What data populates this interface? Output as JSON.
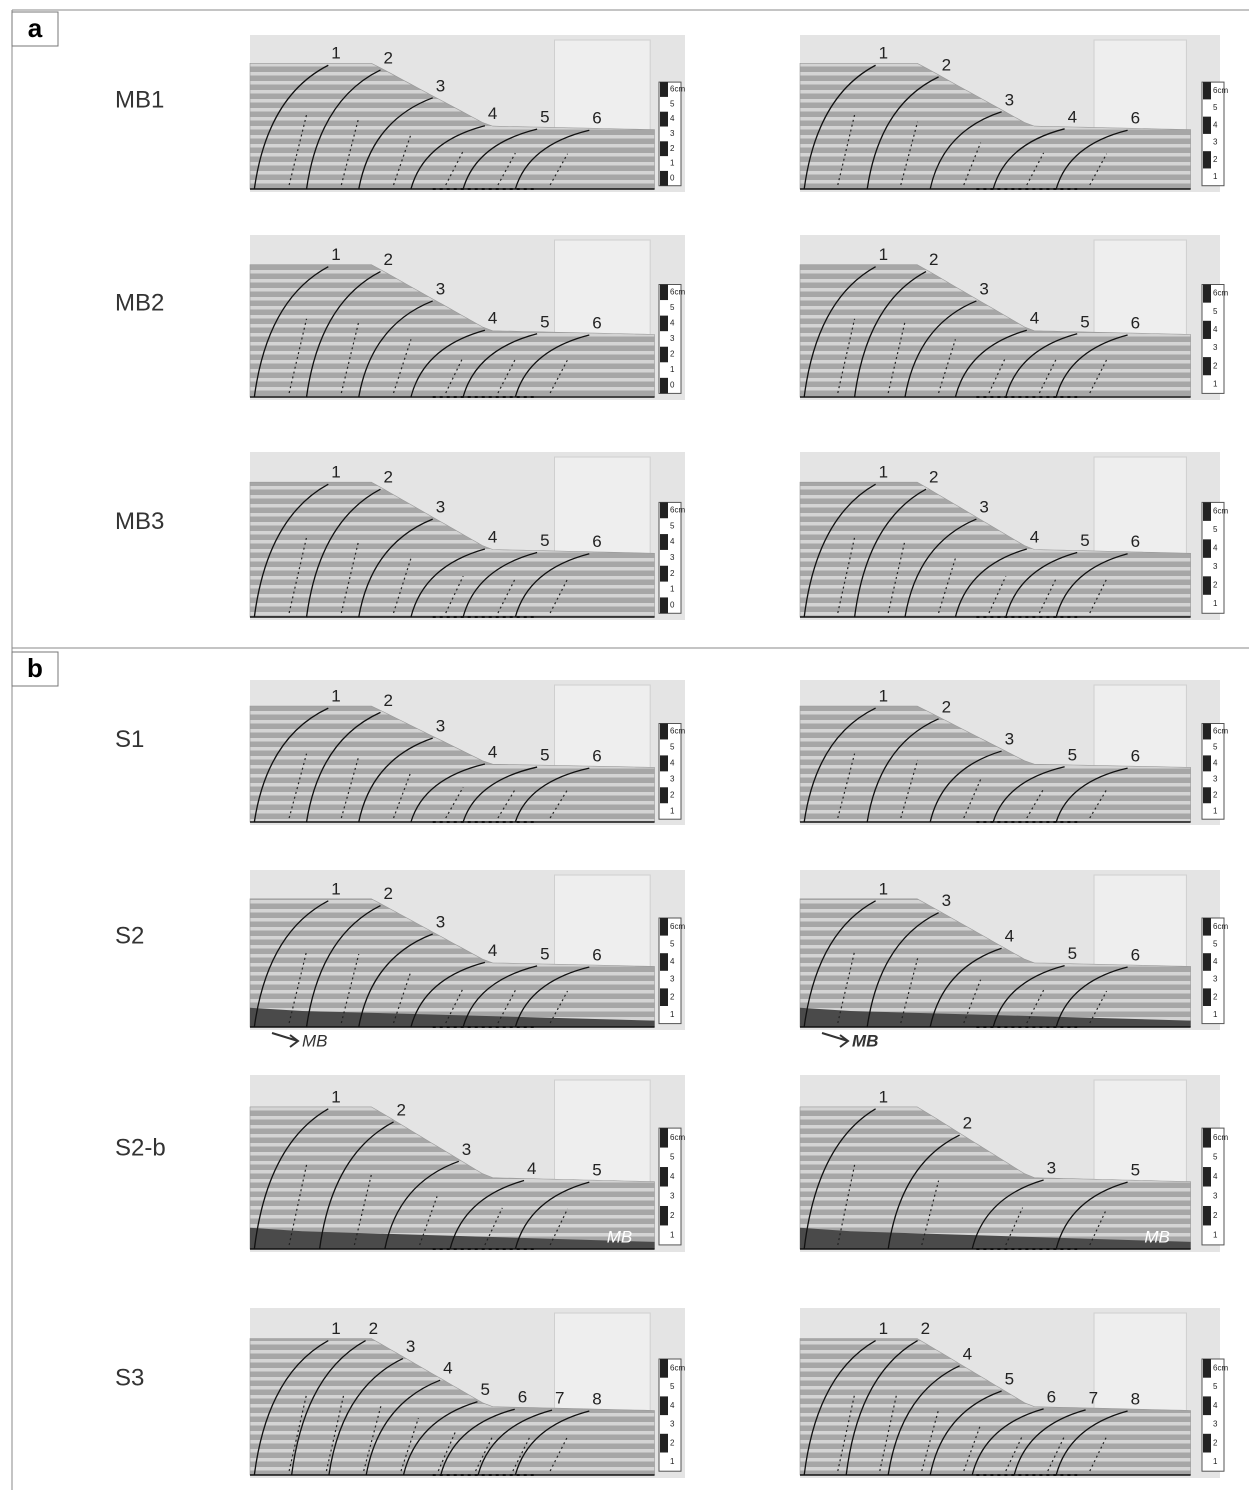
{
  "panels": [
    {
      "label": "a",
      "rows": [
        {
          "label": "MB1",
          "images": [
            {
              "faults": [
                "1",
                "2",
                "3",
                "4",
                "5",
                "6"
              ],
              "scale": [
                "6cm",
                "5",
                "4",
                "3",
                "2",
                "1",
                "0"
              ]
            },
            {
              "faults": [
                "1",
                "2",
                "3",
                "4",
                "6"
              ],
              "scale": [
                "6cm",
                "5",
                "4",
                "3",
                "2",
                "1"
              ]
            }
          ]
        },
        {
          "label": "MB2",
          "images": [
            {
              "faults": [
                "1",
                "2",
                "3",
                "4",
                "5",
                "6"
              ],
              "scale": [
                "6cm",
                "5",
                "4",
                "3",
                "2",
                "1",
                "0"
              ]
            },
            {
              "faults": [
                "1",
                "2",
                "3",
                "4",
                "5",
                "6"
              ],
              "scale": [
                "6cm",
                "5",
                "4",
                "3",
                "2",
                "1"
              ]
            }
          ]
        },
        {
          "label": "MB3",
          "images": [
            {
              "faults": [
                "1",
                "2",
                "3",
                "4",
                "5",
                "6"
              ],
              "scale": [
                "6cm",
                "5",
                "4",
                "3",
                "2",
                "1",
                "0"
              ]
            },
            {
              "faults": [
                "1",
                "2",
                "3",
                "4",
                "5",
                "6"
              ],
              "scale": [
                "6cm",
                "5",
                "4",
                "3",
                "2",
                "1"
              ]
            }
          ]
        }
      ]
    },
    {
      "label": "b",
      "rows": [
        {
          "label": "S1",
          "images": [
            {
              "faults": [
                "1",
                "2",
                "3",
                "4",
                "5",
                "6"
              ],
              "scale": [
                "6cm",
                "5",
                "4",
                "3",
                "2",
                "1"
              ]
            },
            {
              "faults": [
                "1",
                "2",
                "3",
                "5",
                "6"
              ],
              "scale": [
                "6cm",
                "5",
                "4",
                "3",
                "2",
                "1"
              ]
            }
          ]
        },
        {
          "label": "S2",
          "images": [
            {
              "faults": [
                "1",
                "2",
                "3",
                "4",
                "5",
                "6"
              ],
              "scale": [
                "6cm",
                "5",
                "4",
                "3",
                "2",
                "1"
              ],
              "mb_label": "MB"
            },
            {
              "faults": [
                "1",
                "3",
                "4",
                "5",
                "6"
              ],
              "scale": [
                "6cm",
                "5",
                "4",
                "3",
                "2",
                "1"
              ],
              "mb_label": "MB"
            }
          ]
        },
        {
          "label": "S2-b",
          "images": [
            {
              "faults": [
                "1",
                "2",
                "3",
                "4",
                "5"
              ],
              "scale": [
                "6cm",
                "5",
                "4",
                "3",
                "2",
                "1"
              ],
              "mb_label": "MB"
            },
            {
              "faults": [
                "1",
                "2",
                "3",
                "5"
              ],
              "scale": [
                "6cm",
                "5",
                "4",
                "3",
                "2",
                "1"
              ],
              "mb_label": "MB"
            }
          ]
        },
        {
          "label": "S3",
          "images": [
            {
              "faults": [
                "1",
                "2",
                "3",
                "4",
                "5",
                "6",
                "7",
                "8"
              ],
              "scale": [
                "6cm",
                "5",
                "4",
                "3",
                "2",
                "1"
              ]
            },
            {
              "faults": [
                "1",
                "2",
                "4",
                "5",
                "6",
                "7",
                "8"
              ],
              "scale": [
                "6cm",
                "5",
                "4",
                "3",
                "2",
                "1"
              ]
            }
          ]
        }
      ]
    }
  ]
}
